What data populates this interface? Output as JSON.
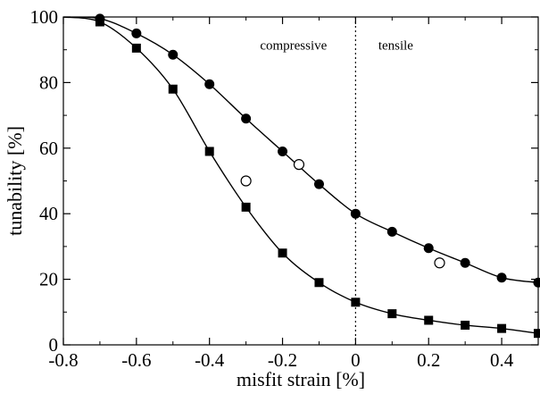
{
  "chart_data": {
    "type": "scatter",
    "xlabel": "misfit strain [%]",
    "ylabel": "tunability [%]",
    "xlim": [
      -0.8,
      0.5
    ],
    "ylim": [
      0,
      100
    ],
    "xticks": [
      -0.8,
      -0.6,
      -0.4,
      -0.2,
      0,
      0.2,
      0.4
    ],
    "xtick_labels": [
      "-0.8",
      "-0.6",
      "-0.4",
      "-0.2",
      "0",
      "0.2",
      "0.4"
    ],
    "yticks": [
      0,
      20,
      40,
      60,
      80,
      100
    ],
    "ytick_labels": [
      "0",
      "20",
      "40",
      "60",
      "80",
      "100"
    ],
    "grid": false,
    "annotations": [
      {
        "text": "compressive",
        "x": -0.17,
        "y": 90
      },
      {
        "text": "tensile",
        "x": 0.11,
        "y": 90
      }
    ],
    "vline": {
      "x": 0,
      "style": "dotted"
    },
    "series": [
      {
        "marker": "circle-filled",
        "x": [
          -0.7,
          -0.6,
          -0.5,
          -0.4,
          -0.3,
          -0.2,
          -0.1,
          0,
          0.1,
          0.2,
          0.3,
          0.4,
          0.5
        ],
        "y": [
          99.5,
          95,
          88.5,
          79.5,
          69,
          59,
          49,
          40,
          34.5,
          29.5,
          25,
          20.5,
          19
        ],
        "fit_curve": true
      },
      {
        "marker": "square-filled",
        "x": [
          -0.7,
          -0.6,
          -0.5,
          -0.4,
          -0.3,
          -0.2,
          -0.1,
          0,
          0.1,
          0.2,
          0.3,
          0.4,
          0.5
        ],
        "y": [
          98.5,
          90.5,
          78,
          59,
          42,
          28,
          19,
          13,
          9.5,
          7.5,
          6,
          5,
          3.5
        ],
        "fit_curve": true
      },
      {
        "marker": "circle-open",
        "x": [
          -0.3,
          -0.155,
          0.23
        ],
        "y": [
          50,
          55,
          25
        ],
        "fit_curve": false
      }
    ]
  }
}
